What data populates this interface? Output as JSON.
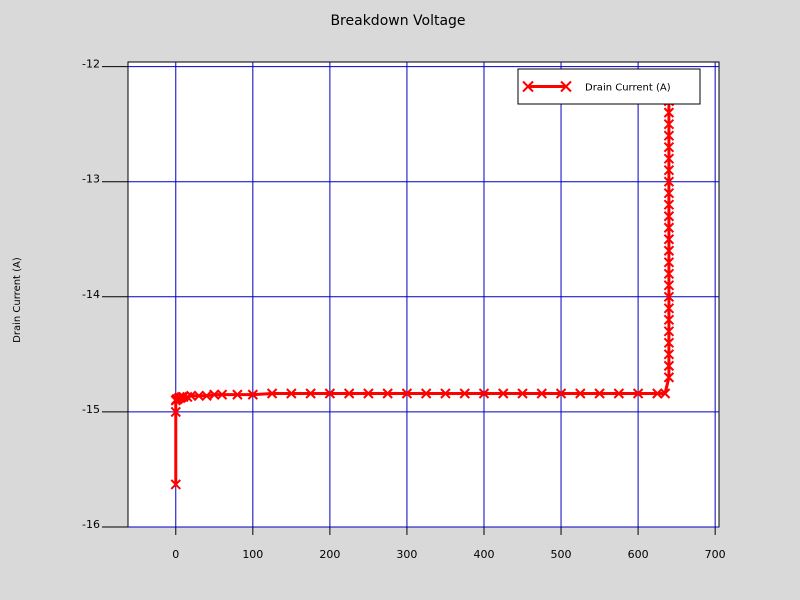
{
  "chart_data": {
    "type": "line",
    "title": "Breakdown Voltage",
    "y_label": "Drain Current (A)",
    "x": [
      0,
      0,
      0,
      1,
      2,
      4,
      6,
      8,
      10,
      15,
      20,
      30,
      40,
      50,
      60,
      80,
      100,
      125,
      150,
      175,
      200,
      225,
      250,
      275,
      300,
      325,
      350,
      375,
      400,
      425,
      450,
      475,
      500,
      525,
      550,
      575,
      600,
      625,
      635,
      640,
      640,
      640,
      640,
      640,
      640,
      640,
      640,
      640,
      640,
      640,
      640,
      640,
      640,
      640,
      640,
      640,
      640,
      640,
      640,
      640,
      640,
      640,
      640,
      640
    ],
    "series": [
      {
        "name": "Drain Current (A)",
        "color": "#ff0000",
        "values": [
          -15.63,
          -15.0,
          -14.9,
          -14.89,
          -14.89,
          -14.88,
          -14.88,
          -14.87,
          -14.87,
          -14.87,
          -14.86,
          -14.86,
          -14.86,
          -14.85,
          -14.85,
          -14.85,
          -14.85,
          -14.84,
          -14.84,
          -14.84,
          -14.84,
          -14.84,
          -14.84,
          -14.84,
          -14.84,
          -14.84,
          -14.84,
          -14.84,
          -14.84,
          -14.84,
          -14.84,
          -14.84,
          -14.84,
          -14.84,
          -14.84,
          -14.84,
          -14.84,
          -14.84,
          -14.84,
          -14.7,
          -14.6,
          -14.5,
          -14.4,
          -14.3,
          -14.2,
          -14.1,
          -14.0,
          -13.9,
          -13.8,
          -13.7,
          -13.6,
          -13.5,
          -13.4,
          -13.3,
          -13.2,
          -13.1,
          -13.0,
          -12.9,
          -12.8,
          -12.7,
          -12.6,
          -12.5,
          -12.4,
          -12.3
        ]
      }
    ],
    "xlim": [
      -62,
      705
    ],
    "ylim": [
      -16,
      -11.96
    ],
    "xticks": [
      0,
      100,
      200,
      300,
      400,
      500,
      600,
      700
    ],
    "yticks": [
      -16,
      -15,
      -14,
      -13,
      -12
    ],
    "grid": true,
    "grid_color": "#0000c0",
    "legend": "upper right"
  }
}
